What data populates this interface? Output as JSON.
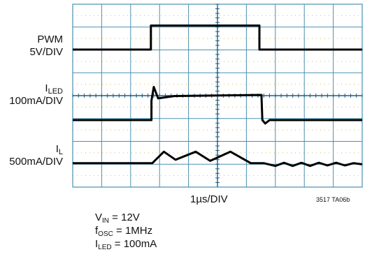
{
  "chart_data": {
    "type": "line",
    "title": "",
    "xlabel": "1µs/DIV",
    "figure_id": "3517 TA06b",
    "grid": true,
    "grid_divisions": {
      "x": 10,
      "y": 8
    },
    "x_unit": "DIV",
    "traces": [
      {
        "name_main": "I",
        "name_sub": "L",
        "scale": "500mA/DIV",
        "points": [
          [
            0,
            0.1
          ],
          [
            1.88,
            0.1
          ],
          [
            2.75,
            0.1
          ],
          [
            3.15,
            0.6
          ],
          [
            3.55,
            0.25
          ],
          [
            4.25,
            0.6
          ],
          [
            4.75,
            0.2
          ],
          [
            5.45,
            0.6
          ],
          [
            6.15,
            0.1
          ],
          [
            6.6,
            0.1
          ],
          [
            7.0,
            -0.02
          ],
          [
            7.3,
            0.12
          ],
          [
            7.6,
            -0.02
          ],
          [
            7.9,
            0.12
          ],
          [
            8.2,
            -0.02
          ],
          [
            8.5,
            0.12
          ],
          [
            8.8,
            0.0
          ],
          [
            9.1,
            0.12
          ],
          [
            9.4,
            0.0
          ],
          [
            9.7,
            0.1
          ],
          [
            10,
            0.05
          ]
        ]
      },
      {
        "name_main": "I",
        "name_sub": "LED",
        "scale": "100mA/DIV",
        "points": [
          [
            0,
            0
          ],
          [
            2.72,
            0
          ],
          [
            2.72,
            0.85
          ],
          [
            2.8,
            1.45
          ],
          [
            2.95,
            0.95
          ],
          [
            3.5,
            1.05
          ],
          [
            6.5,
            1.1
          ],
          [
            6.52,
            1.1
          ],
          [
            6.55,
            0
          ],
          [
            6.65,
            -0.15
          ],
          [
            6.8,
            0
          ],
          [
            10,
            0
          ]
        ]
      },
      {
        "name_main": "PWM",
        "name_sub": "",
        "scale": "5V/DIV",
        "points": [
          [
            0,
            0
          ],
          [
            2.7,
            0
          ],
          [
            2.7,
            1.05
          ],
          [
            6.45,
            1.05
          ],
          [
            6.45,
            0
          ],
          [
            10,
            0
          ]
        ]
      }
    ],
    "conditions": [
      {
        "main": "V",
        "sub": "IN",
        "rest": " = 12V"
      },
      {
        "main": "f",
        "sub": "OSC",
        "rest": " = 1MHz"
      },
      {
        "main": "I",
        "sub": "LED",
        "rest": " = 100mA"
      }
    ],
    "colors": {
      "grid": "#4a90b0",
      "trace": "#000000",
      "dots": "#c8a000"
    }
  }
}
